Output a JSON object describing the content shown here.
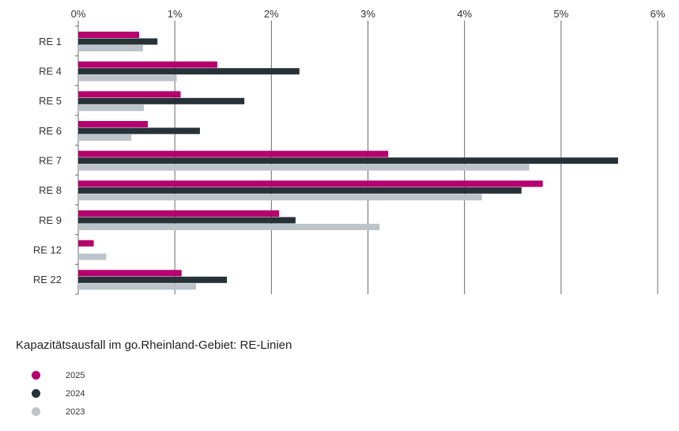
{
  "chart_data": {
    "type": "bar",
    "orientation": "horizontal",
    "title": "Kapazitätsausfall im go.Rheinland-Gebiet: RE-Linien",
    "categories": [
      "RE 1",
      "RE 4",
      "RE 5",
      "RE 6",
      "RE 7",
      "RE 8",
      "RE 9",
      "RE 12",
      "RE 22"
    ],
    "series": [
      {
        "name": "2025",
        "color": "#b5006e",
        "values": [
          0.63,
          1.44,
          1.06,
          0.72,
          3.21,
          4.81,
          2.08,
          0.16,
          1.07
        ]
      },
      {
        "name": "2024",
        "color": "#263238",
        "values": [
          0.82,
          2.29,
          1.72,
          1.26,
          5.59,
          4.59,
          2.25,
          0,
          1.54
        ]
      },
      {
        "name": "2023",
        "color": "#bcc3c9",
        "values": [
          0.67,
          1.02,
          0.68,
          0.55,
          4.67,
          4.18,
          3.12,
          0.29,
          1.22
        ]
      }
    ],
    "xlim": [
      0,
      6
    ],
    "xticks": [
      "0%",
      "1%",
      "2%",
      "3%",
      "4%",
      "5%",
      "6%"
    ],
    "xlabel": "",
    "ylabel": "",
    "grid": true,
    "legend_position": "bottom-left"
  }
}
